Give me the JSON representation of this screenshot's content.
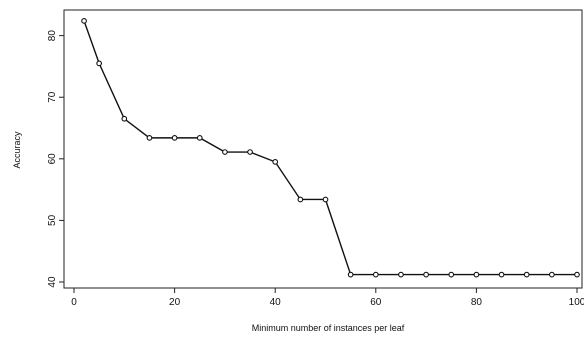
{
  "chart_data": {
    "type": "line",
    "title": "",
    "xlabel": "Minimum number of instances per leaf",
    "ylabel": "Accuracy",
    "xlim": [
      0,
      100
    ],
    "ylim": [
      40,
      84
    ],
    "xticks": [
      0,
      20,
      40,
      60,
      80,
      100
    ],
    "yticks": [
      40,
      50,
      60,
      70,
      80
    ],
    "grid": false,
    "legend": "none",
    "series": [
      {
        "x": [
          2,
          5,
          10,
          15,
          20,
          25,
          30,
          35,
          40,
          45,
          50,
          55,
          60,
          65,
          70,
          75,
          80,
          85,
          90,
          95,
          100
        ],
        "y": [
          82.4,
          75.5,
          66.5,
          63.4,
          63.4,
          63.4,
          61.1,
          61.1,
          59.5,
          53.4,
          53.4,
          41.2,
          41.2,
          41.2,
          41.2,
          41.2,
          41.2,
          41.2,
          41.2,
          41.2,
          41.2
        ]
      }
    ]
  }
}
